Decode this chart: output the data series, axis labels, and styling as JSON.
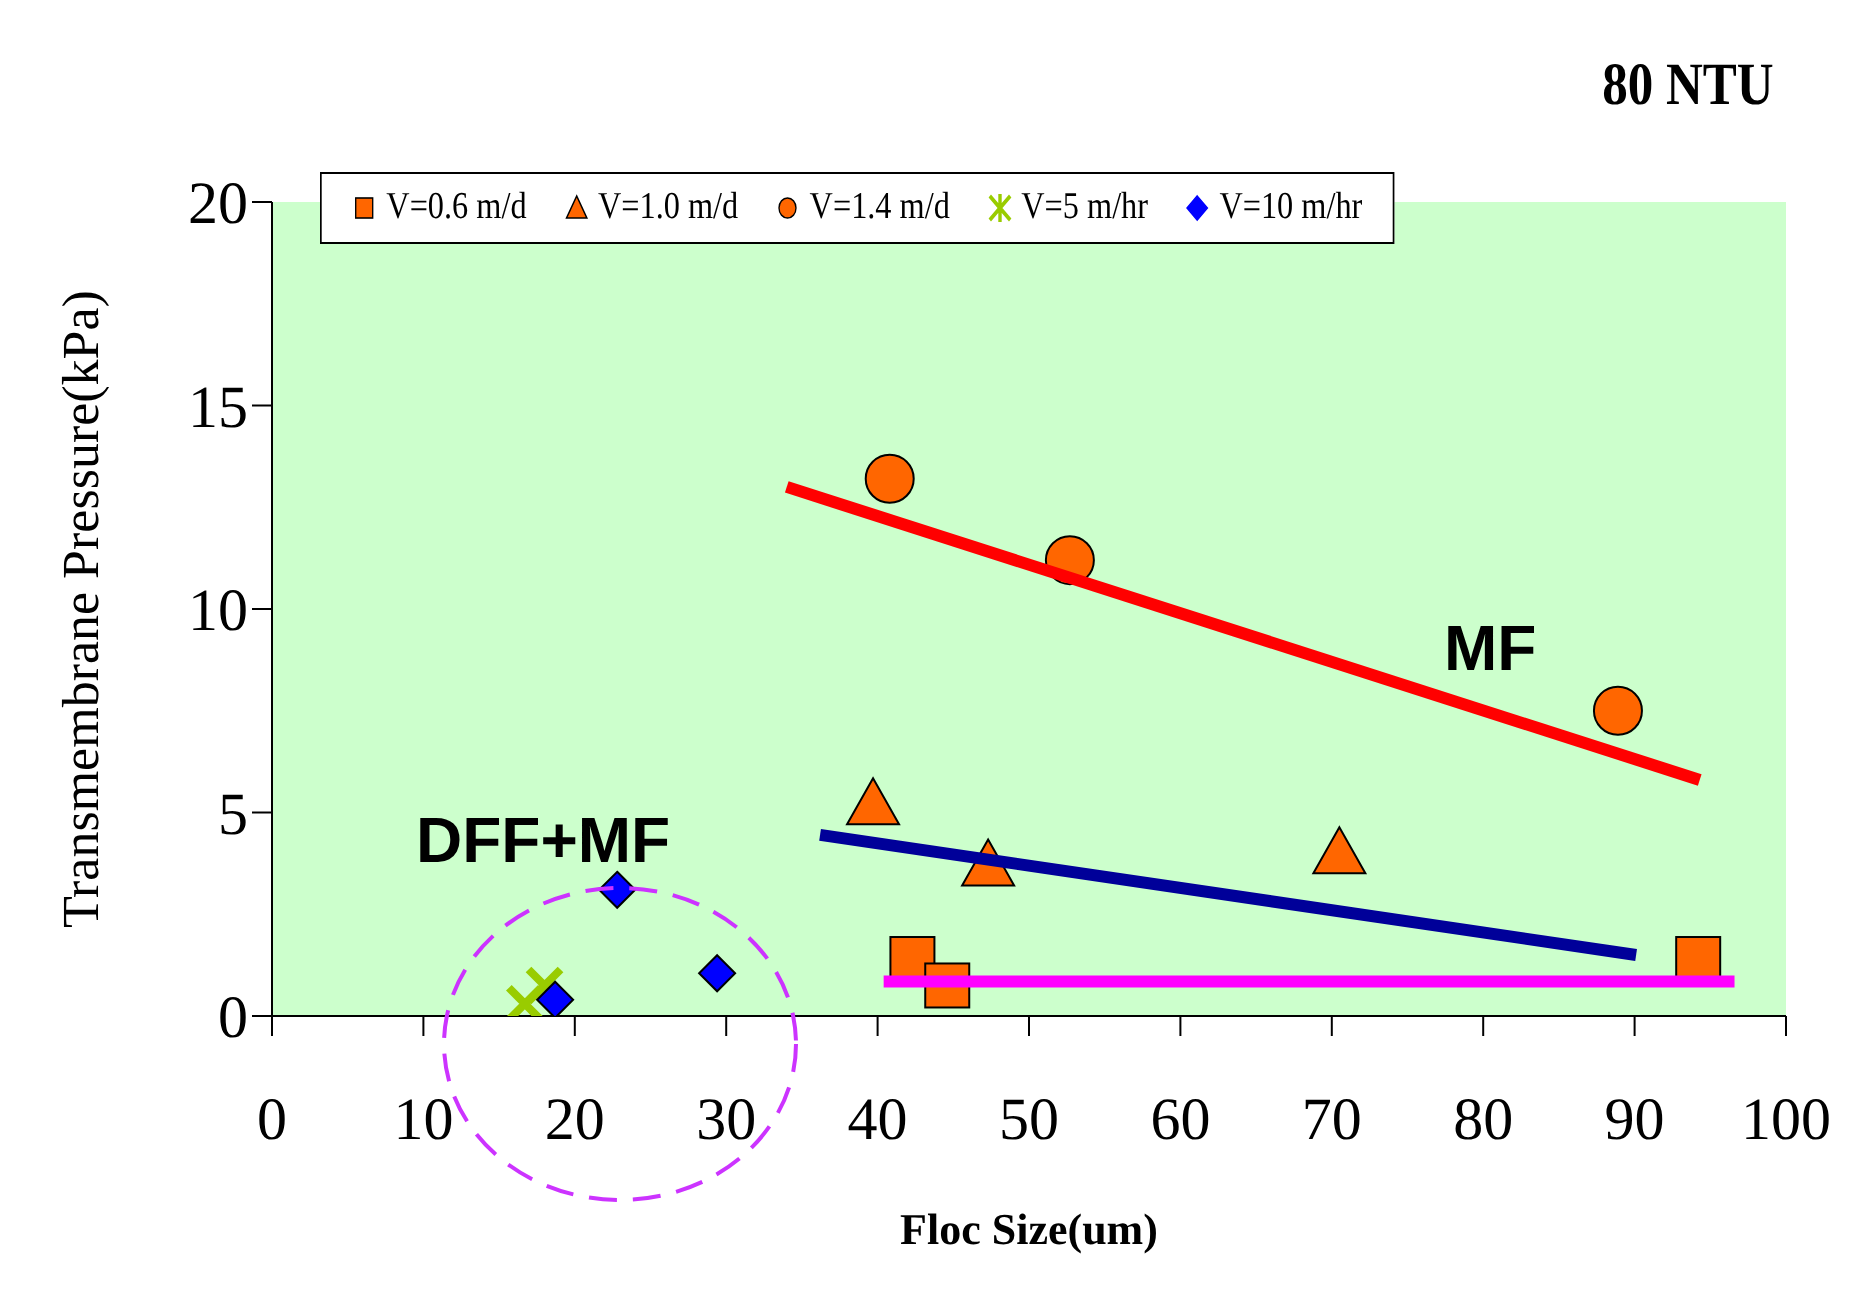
{
  "chart_data": {
    "type": "scatter",
    "title": "80 NTU",
    "xlabel": "Floc Size(um)",
    "ylabel": "Transmembrane  Pressure(kPa)",
    "xlim": [
      0,
      100
    ],
    "xticks": [
      0,
      10,
      20,
      30,
      40,
      50,
      60,
      70,
      80,
      90,
      100
    ],
    "ylim": [
      0,
      20
    ],
    "yticks": [
      0,
      5,
      10,
      15,
      20
    ],
    "grid": false,
    "legend": "top",
    "annotations": [
      "MF",
      "DFF+MF"
    ],
    "series": [
      {
        "name": "V=0.6 m/d",
        "color": "#ff6600",
        "marker": "square",
        "x": [
          42.3,
          44.6,
          94.2
        ],
        "values": [
          1.4,
          0.75,
          1.4
        ]
      },
      {
        "name": "V=1.0 m/d",
        "color": "#ff6600",
        "marker": "triangle",
        "x": [
          39.7,
          47.3,
          70.5
        ],
        "values": [
          5.2,
          3.7,
          4.0
        ]
      },
      {
        "name": "V=1.4 m/d",
        "color": "#ff6600",
        "marker": "circle",
        "x": [
          40.8,
          52.7,
          88.9
        ],
        "values": [
          13.2,
          11.2,
          7.5
        ]
      },
      {
        "name": "V=5 m/hr",
        "color": "#99cc00",
        "marker": "cross",
        "x": [
          16.7,
          18.0
        ],
        "values": [
          0.3,
          0.75
        ]
      },
      {
        "name": "V=10 m/hr",
        "color": "#0000ff",
        "marker": "diamond",
        "x": [
          18.7,
          22.8,
          29.4
        ],
        "values": [
          0.4,
          3.1,
          1.05
        ]
      },
      {
        "type": "line",
        "color": "#ff0000",
        "x": [
          34.0,
          94.3
        ],
        "values": [
          13.0,
          5.8
        ]
      },
      {
        "type": "line",
        "color": "#000099",
        "x": [
          36.2,
          90.1
        ],
        "values": [
          4.45,
          1.5
        ]
      },
      {
        "type": "line",
        "color": "#ff00ff",
        "x": [
          40.4,
          96.6
        ],
        "values": [
          0.85,
          0.85
        ]
      }
    ]
  }
}
